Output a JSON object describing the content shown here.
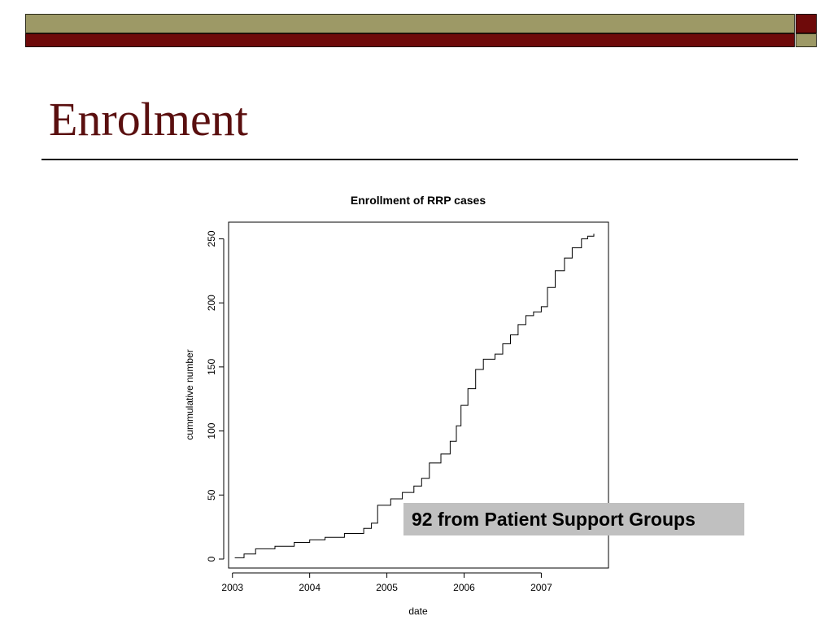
{
  "slide": {
    "title": "Enrolment",
    "callout": "92 from Patient Support Groups",
    "colors": {
      "accent_olive": "#9d9966",
      "accent_maroon": "#6e0a0a",
      "title": "#5a0f0f",
      "callout_bg": "#c0c0c0"
    }
  },
  "chart_data": {
    "type": "line",
    "title": "Enrollment of RRP cases",
    "xlabel": "date",
    "ylabel": "cummulative number",
    "xlim": [
      2002.95,
      2007.87
    ],
    "ylim": [
      -7,
      263
    ],
    "x_ticks": [
      2003,
      2004,
      2005,
      2006,
      2007
    ],
    "y_ticks": [
      0,
      50,
      100,
      150,
      200,
      250
    ],
    "x_tick_labels": [
      "2003",
      "2004",
      "2005",
      "2006",
      "2007"
    ],
    "y_tick_labels": [
      "0",
      "50",
      "100",
      "150",
      "200",
      "250"
    ],
    "step": true,
    "grid": false,
    "series": [
      {
        "x": [
          2003.03,
          2003.15,
          2003.3,
          2003.55,
          2003.8,
          2004.0,
          2004.2,
          2004.45,
          2004.7,
          2004.8,
          2004.88,
          2005.05,
          2005.2,
          2005.35,
          2005.45,
          2005.55,
          2005.7,
          2005.82,
          2005.9,
          2005.96,
          2006.05,
          2006.15,
          2006.25,
          2006.4,
          2006.5,
          2006.6,
          2006.7,
          2006.8,
          2006.9,
          2007.0,
          2007.08,
          2007.18,
          2007.3,
          2007.4,
          2007.52,
          2007.6,
          2007.68
        ],
        "y": [
          1,
          4,
          8,
          10,
          13,
          15,
          17,
          20,
          24,
          28,
          42,
          47,
          52,
          57,
          63,
          75,
          82,
          92,
          104,
          120,
          133,
          148,
          156,
          160,
          168,
          175,
          183,
          190,
          193,
          197,
          212,
          225,
          235,
          243,
          250,
          252,
          254
        ]
      }
    ]
  }
}
